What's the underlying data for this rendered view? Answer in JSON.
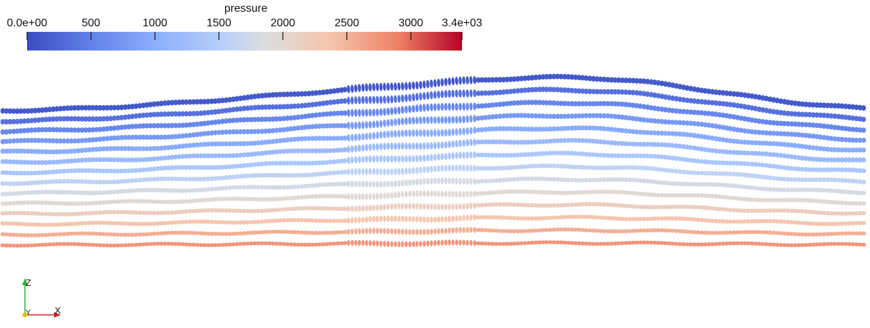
{
  "colorbar": {
    "title": "pressure",
    "min": 0,
    "max": 3400,
    "tick_labels": [
      "0.0e+00",
      "500",
      "1000",
      "1500",
      "2000",
      "2500",
      "3000",
      "3.4e+03"
    ],
    "tick_values": [
      0,
      500,
      1000,
      1500,
      2000,
      2500,
      3000,
      3400
    ],
    "colors": {
      "low": "#3b4cc0",
      "mid": "#dddddd",
      "high": "#b40426"
    }
  },
  "axes_triad": {
    "z_label": "Z",
    "y_label": "Y",
    "x_label": "X",
    "colors": {
      "z": "#33aa33",
      "y": "#d8c21a",
      "x": "#cc2222"
    }
  },
  "field": {
    "rows": 14,
    "pressure_top": 120,
    "pressure_bottom": 2750
  }
}
